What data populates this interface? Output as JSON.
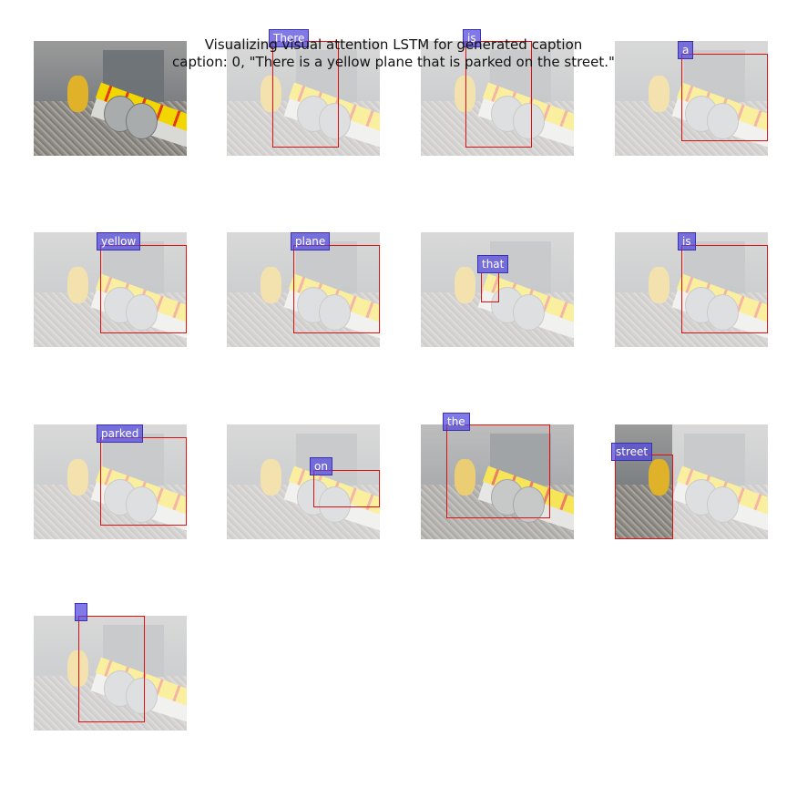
{
  "figure": {
    "title_line1": "Visualizing visual attention LSTM for generated caption",
    "title_line2": "caption: 0, \"There is a yellow plane that is parked on the street.\""
  },
  "panels": [
    {
      "word": ""
    },
    {
      "word": "There"
    },
    {
      "word": "is"
    },
    {
      "word": "a"
    },
    {
      "word": "yellow"
    },
    {
      "word": "plane"
    },
    {
      "word": "that"
    },
    {
      "word": "is"
    },
    {
      "word": "parked"
    },
    {
      "word": "on"
    },
    {
      "word": "the"
    },
    {
      "word": "street"
    },
    {
      "word": ""
    }
  ]
}
